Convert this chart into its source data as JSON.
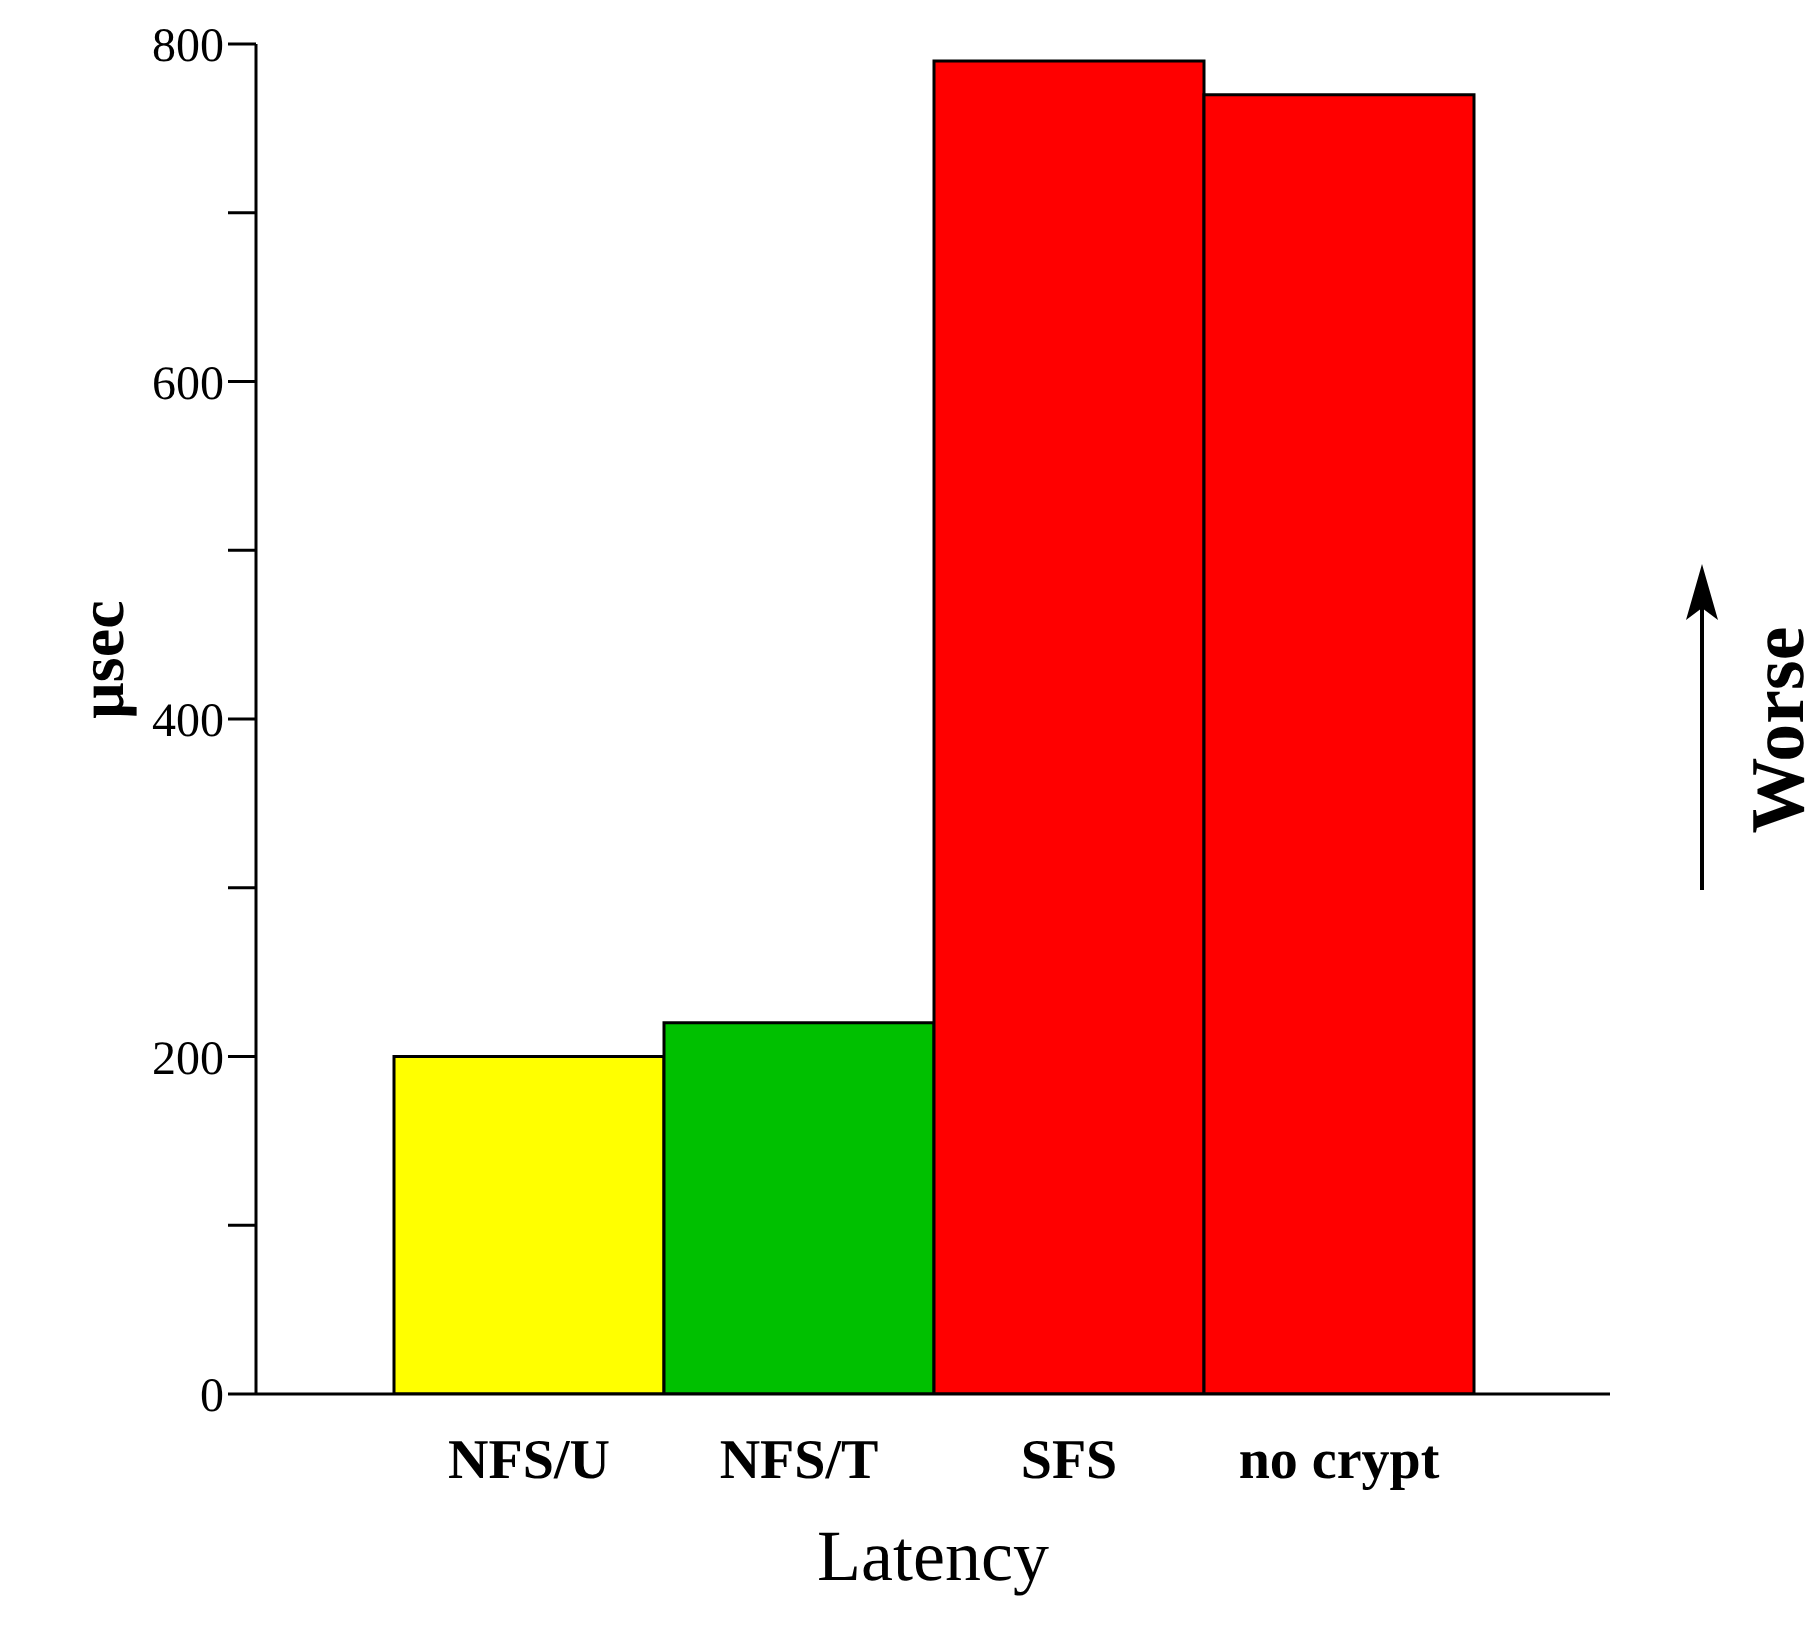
{
  "chart_data": {
    "type": "bar",
    "categories": [
      "NFS/U",
      "NFS/T",
      "SFS",
      "no crypt"
    ],
    "values": [
      200,
      220,
      790,
      770
    ],
    "colors": [
      "#ffff00",
      "#00c000",
      "#ff0000",
      "#ff0000"
    ],
    "xlabel": "Latency",
    "ylabel": "µsec",
    "ylim": [
      0,
      800
    ],
    "yticks": [
      0,
      {
        "value": 100,
        "label": null
      },
      200,
      {
        "value": 300,
        "label": null
      },
      400,
      {
        "value": 500,
        "label": null
      },
      600,
      {
        "value": 700,
        "label": null
      },
      800
    ],
    "grid": false,
    "legend": false,
    "annotations": [
      "Worse"
    ]
  }
}
